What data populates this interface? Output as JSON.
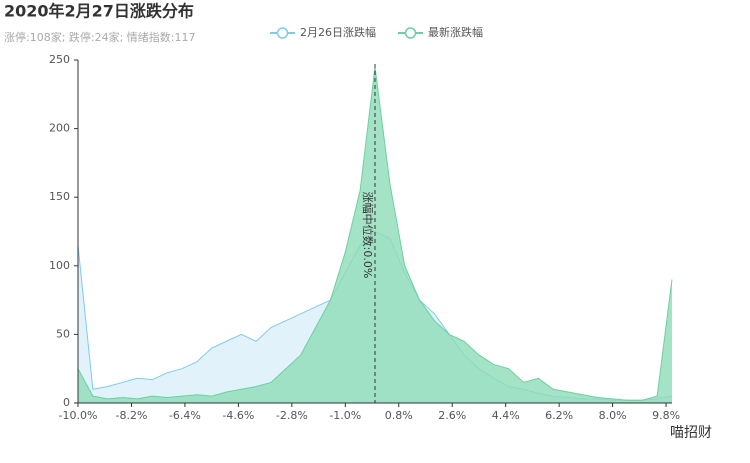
{
  "chart_data": {
    "type": "area",
    "title": "2020年2月27日涨跌分布",
    "subtitle": "涨停:108家; 跌停:24家; 情绪指数:117",
    "watermark": "喵招财",
    "x": [
      -10,
      -9.5,
      -9,
      -8.5,
      -8,
      -7.5,
      -7,
      -6.5,
      -6,
      -5.5,
      -5,
      -4.5,
      -4,
      -3.5,
      -3,
      -2.5,
      -2,
      -1.5,
      -1,
      -0.5,
      0,
      0.5,
      1,
      1.5,
      2,
      2.5,
      3,
      3.5,
      4,
      4.5,
      5,
      5.5,
      6,
      6.5,
      7,
      7.5,
      8,
      8.5,
      9,
      9.5,
      10
    ],
    "series": [
      {
        "name": "2月26日涨跌幅",
        "color": "#7ecbee",
        "fill": "#dff1fb",
        "values": [
          115,
          10,
          12,
          15,
          18,
          17,
          22,
          25,
          30,
          40,
          45,
          50,
          45,
          55,
          60,
          65,
          70,
          75,
          95,
          115,
          125,
          120,
          95,
          75,
          65,
          50,
          35,
          25,
          18,
          12,
          10,
          7,
          5,
          4,
          3,
          3,
          2,
          2,
          2,
          3,
          5
        ]
      },
      {
        "name": "最新涨跌幅",
        "color": "#69d19f",
        "fill": "#8fdcb8",
        "values": [
          25,
          5,
          3,
          4,
          3,
          5,
          4,
          5,
          6,
          5,
          8,
          10,
          12,
          15,
          25,
          35,
          55,
          75,
          110,
          155,
          245,
          160,
          100,
          75,
          60,
          50,
          45,
          35,
          28,
          25,
          15,
          18,
          10,
          8,
          6,
          4,
          3,
          2,
          2,
          5,
          90
        ]
      }
    ],
    "median": {
      "value": 0,
      "label": "涨幅中位数:0.0%"
    },
    "xlim": [
      -10,
      10
    ],
    "ylim": [
      0,
      250
    ],
    "xticks": [
      {
        "value": -10,
        "label": "-10.0%"
      },
      {
        "value": -8.2,
        "label": "-8.2%"
      },
      {
        "value": -6.4,
        "label": "-6.4%"
      },
      {
        "value": -4.6,
        "label": "-4.6%"
      },
      {
        "value": -2.8,
        "label": "-2.8%"
      },
      {
        "value": -1,
        "label": "-1.0%"
      },
      {
        "value": 0.8,
        "label": "0.8%"
      },
      {
        "value": 2.6,
        "label": "2.6%"
      },
      {
        "value": 4.4,
        "label": "4.4%"
      },
      {
        "value": 6.2,
        "label": "6.2%"
      },
      {
        "value": 8,
        "label": "8.0%"
      },
      {
        "value": 9.8,
        "label": "9.8%"
      }
    ],
    "yticks": [
      0,
      50,
      100,
      150,
      200,
      250
    ]
  }
}
